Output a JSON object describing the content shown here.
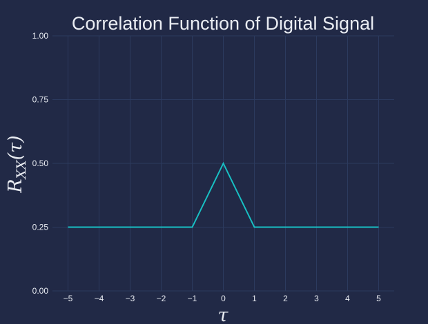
{
  "chart_data": {
    "type": "line",
    "title": "Correlation Function of Digital Signal",
    "xlabel": "τ",
    "ylabel_base": "R",
    "ylabel_sub": "XX",
    "ylabel_arg": "(τ)",
    "xlim": [
      -5.5,
      5.5
    ],
    "ylim": [
      0,
      1
    ],
    "x_ticks": [
      -5,
      -4,
      -3,
      -2,
      -1,
      0,
      1,
      2,
      3,
      4,
      5
    ],
    "x_tick_labels": [
      "−5",
      "−4",
      "−3",
      "−2",
      "−1",
      "0",
      "1",
      "2",
      "3",
      "4",
      "5"
    ],
    "y_ticks": [
      0,
      0.25,
      0.5,
      0.75,
      1.0
    ],
    "y_tick_labels": [
      "0.00",
      "0.25",
      "0.50",
      "0.75",
      "1.00"
    ],
    "grid": true,
    "series": [
      {
        "x": [
          -5,
          -1,
          0,
          1,
          5
        ],
        "y": [
          0.25,
          0.25,
          0.5,
          0.25,
          0.25
        ],
        "color": "#18c0c4"
      }
    ]
  },
  "colors": {
    "background": "#212946",
    "grid": "#2c3a5e",
    "text": "#e9ecf2",
    "line": "#18c0c4"
  }
}
